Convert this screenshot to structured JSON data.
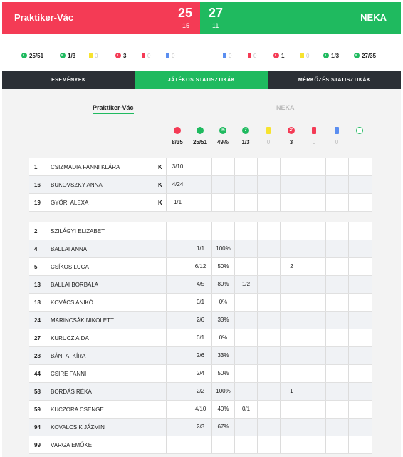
{
  "score": {
    "home_team": "Praktiker-Vác",
    "home_score": "25",
    "home_half": "15",
    "away_team": "NEKA",
    "away_score": "27",
    "away_half": "11"
  },
  "summary": {
    "home": [
      {
        "icon": "ball-green-icon",
        "value": "25/51"
      },
      {
        "icon": "seven-meter-green-icon",
        "value": "1/3"
      },
      {
        "icon": "yellow-card-icon",
        "value": "0"
      },
      {
        "icon": "two-minute-icon",
        "value": "3"
      },
      {
        "icon": "red-card-icon",
        "value": "0"
      },
      {
        "icon": "blue-card-icon",
        "value": "0"
      }
    ],
    "away": [
      {
        "icon": "blue-card-icon",
        "value": "0"
      },
      {
        "icon": "red-card-icon",
        "value": "0"
      },
      {
        "icon": "two-minute-icon",
        "value": "1"
      },
      {
        "icon": "yellow-card-icon",
        "value": "0"
      },
      {
        "icon": "seven-meter-green-icon",
        "value": "1/3"
      },
      {
        "icon": "ball-green-icon",
        "value": "27/35"
      }
    ]
  },
  "tabs": [
    "ESEMÉNYEK",
    "JÁTÉKOS STATISZTIKÁK",
    "MÉRKŐZÉS STATISZTIKÁK"
  ],
  "team_switch": {
    "home": "Praktiker-Vác",
    "away": "NEKA"
  },
  "column_totals": [
    "8/35",
    "25/51",
    "49%",
    "1/3",
    "0",
    "3",
    "0",
    "0",
    ""
  ],
  "goalkeepers": [
    {
      "num": "1",
      "name": "CSIZMADIA FANNI KLÁRA",
      "k": "K",
      "saves": "3/10"
    },
    {
      "num": "16",
      "name": "BUKOVSZKY ANNA",
      "k": "K",
      "saves": "4/24"
    },
    {
      "num": "19",
      "name": "GYŐRI ALEXA",
      "k": "K",
      "saves": "1/1"
    }
  ],
  "players": [
    {
      "num": "2",
      "name": "SZILÁGYI ELIZABET",
      "shots": "",
      "pct": "",
      "seven": "",
      "two_min": ""
    },
    {
      "num": "4",
      "name": "BALLAI ANNA",
      "shots": "1/1",
      "pct": "100%",
      "seven": "",
      "two_min": ""
    },
    {
      "num": "5",
      "name": "CSÍKOS LUCA",
      "shots": "6/12",
      "pct": "50%",
      "seven": "",
      "two_min": "2"
    },
    {
      "num": "13",
      "name": "BALLAI BORBÁLA",
      "shots": "4/5",
      "pct": "80%",
      "seven": "1/2",
      "two_min": ""
    },
    {
      "num": "18",
      "name": "KOVÁCS ANIKÓ",
      "shots": "0/1",
      "pct": "0%",
      "seven": "",
      "two_min": ""
    },
    {
      "num": "24",
      "name": "MARINCSÁK NIKOLETT",
      "shots": "2/6",
      "pct": "33%",
      "seven": "",
      "two_min": ""
    },
    {
      "num": "27",
      "name": "KURUCZ AIDA",
      "shots": "0/1",
      "pct": "0%",
      "seven": "",
      "two_min": ""
    },
    {
      "num": "28",
      "name": "BÁNFAI KÍRA",
      "shots": "2/6",
      "pct": "33%",
      "seven": "",
      "two_min": ""
    },
    {
      "num": "44",
      "name": "CSIRE FANNI",
      "shots": "2/4",
      "pct": "50%",
      "seven": "",
      "two_min": ""
    },
    {
      "num": "58",
      "name": "BORDÁS RÉKA",
      "shots": "2/2",
      "pct": "100%",
      "seven": "",
      "two_min": "1"
    },
    {
      "num": "59",
      "name": "KUCZORA CSENGE",
      "shots": "4/10",
      "pct": "40%",
      "seven": "0/1",
      "two_min": ""
    },
    {
      "num": "94",
      "name": "KOVALCSIK JÁZMIN",
      "shots": "2/3",
      "pct": "67%",
      "seven": "",
      "two_min": ""
    },
    {
      "num": "99",
      "name": "VARGA EMŐKE",
      "shots": "",
      "pct": "",
      "seven": "",
      "two_min": ""
    }
  ]
}
